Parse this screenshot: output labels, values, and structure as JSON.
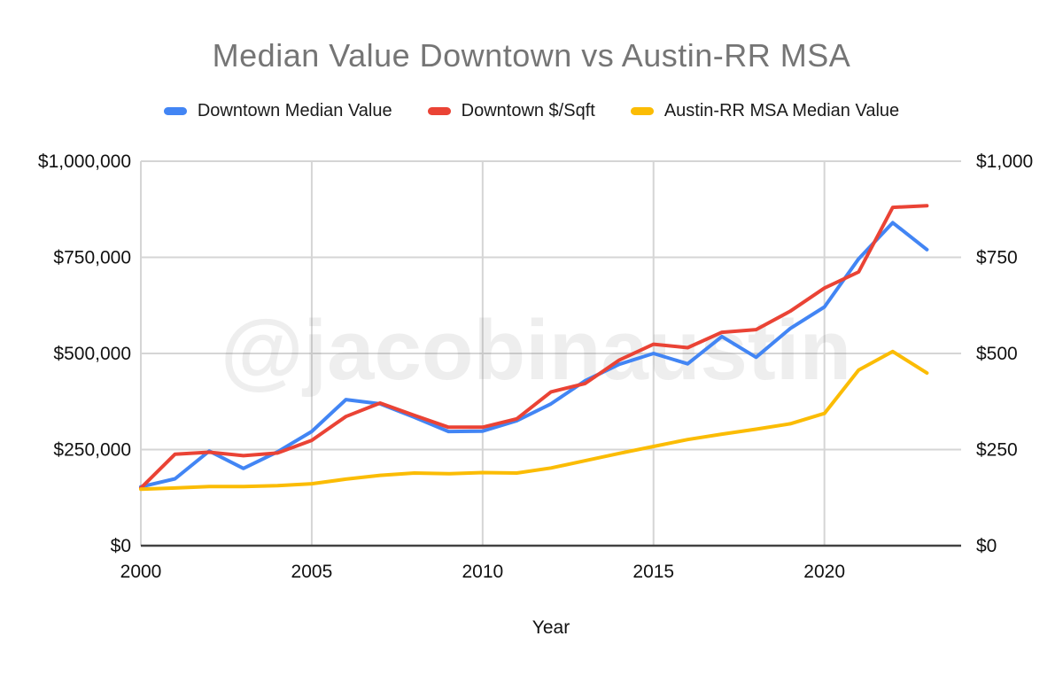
{
  "header": {
    "title": "Median Value Downtown vs Austin-RR MSA",
    "title_color": "#757575"
  },
  "watermark": {
    "text": "@jacobinaustin"
  },
  "chart_data": {
    "type": "line",
    "title": "Median Value Downtown vs Austin-RR MSA",
    "xlabel": "Year",
    "grid": true,
    "legend_position": "top",
    "x_range": [
      2000,
      2024
    ],
    "x": [
      2000,
      2001,
      2002,
      2003,
      2004,
      2005,
      2006,
      2007,
      2008,
      2009,
      2010,
      2011,
      2012,
      2013,
      2014,
      2015,
      2016,
      2017,
      2018,
      2019,
      2020,
      2021,
      2022,
      2023
    ],
    "x_ticks": [
      {
        "value": 2000,
        "label": "2000"
      },
      {
        "value": 2005,
        "label": "2005"
      },
      {
        "value": 2010,
        "label": "2010"
      },
      {
        "value": 2015,
        "label": "2015"
      },
      {
        "value": 2020,
        "label": "2020"
      }
    ],
    "left_axis": {
      "range": [
        0,
        1000000
      ],
      "ticks": [
        {
          "value": 0,
          "label": "$0"
        },
        {
          "value": 250000,
          "label": "$250,000"
        },
        {
          "value": 500000,
          "label": "$500,000"
        },
        {
          "value": 750000,
          "label": "$750,000"
        },
        {
          "value": 1000000,
          "label": "$1,000,000"
        }
      ]
    },
    "right_axis": {
      "range": [
        0,
        1000
      ],
      "ticks": [
        {
          "value": 0,
          "label": "$0"
        },
        {
          "value": 250,
          "label": "$250"
        },
        {
          "value": 500,
          "label": "$500"
        },
        {
          "value": 750,
          "label": "$750"
        },
        {
          "value": 1000,
          "label": "$1,000"
        }
      ]
    },
    "series": [
      {
        "name": "Downtown Median Value",
        "axis": "left",
        "color": "#4285F4",
        "values": [
          153000,
          174000,
          246000,
          201000,
          244000,
          297000,
          380000,
          369000,
          334000,
          297000,
          298000,
          325000,
          369000,
          429000,
          472000,
          500000,
          473000,
          544000,
          490000,
          565000,
          621000,
          746000,
          840000,
          770000
        ]
      },
      {
        "name": "Downtown $/Sqft",
        "axis": "right",
        "color": "#EA4335",
        "values": [
          150,
          238,
          243,
          234,
          241,
          274,
          336,
          371,
          339,
          308,
          308,
          330,
          400,
          422,
          483,
          524,
          515,
          555,
          562,
          610,
          670,
          712,
          880,
          884
        ]
      },
      {
        "name": "Austin-RR MSA Median Value",
        "axis": "left",
        "color": "#FBBC04",
        "values": [
          147000,
          150000,
          154000,
          154000,
          156000,
          161000,
          173000,
          183000,
          189000,
          187000,
          190000,
          189000,
          202000,
          221000,
          240000,
          258000,
          276000,
          290000,
          303000,
          317000,
          344000,
          457000,
          505000,
          449000
        ]
      }
    ],
    "style": {
      "gridline_color": "#d5d5d5",
      "axis_line_color": "#424242",
      "tick_label_color": "#111111",
      "watermark_color": "rgba(120,120,120,0.13)"
    }
  }
}
